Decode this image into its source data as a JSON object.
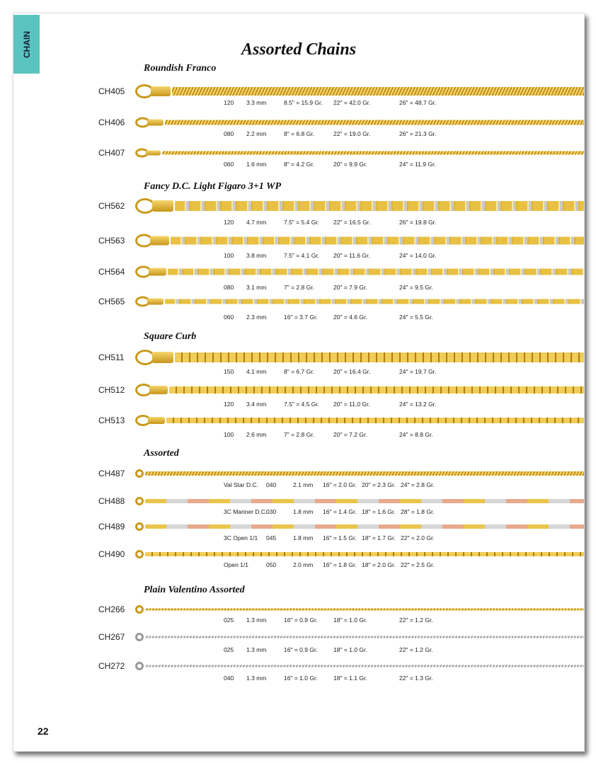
{
  "tab_label": "CHAIN",
  "title": "Assorted Chains",
  "page_number": "22",
  "colors": {
    "tab": "#5cc4c0",
    "gold": "#d4a52a"
  },
  "sections": [
    {
      "heading": "Roundish Franco",
      "items": [
        {
          "code": "CH405",
          "specs": [
            "120",
            "3.3 mm",
            "8.5\" = 15.9 Gr.",
            "22\" = 42.0 Gr.",
            "26\" = 48.7 Gr."
          ]
        },
        {
          "code": "CH406",
          "specs": [
            "080",
            "2.2 mm",
            "8\" = 6.8 Gr.",
            "22\" = 19.0 Gr.",
            "26\" = 21.3 Gr."
          ]
        },
        {
          "code": "CH407",
          "specs": [
            "060",
            "1.6 mm",
            "8\" = 4.2 Gr.",
            "20\" = 9.9 Gr.",
            "24\" = 11.9 Gr."
          ]
        }
      ]
    },
    {
      "heading": "Fancy D.C. Light Figaro 3+1  WP",
      "items": [
        {
          "code": "CH562",
          "specs": [
            "120",
            "4.7 mm",
            "7.5\" = 5.4 Gr.",
            "22\" = 16.5 Gr.",
            "26\" = 19.8 Gr."
          ]
        },
        {
          "code": "CH563",
          "specs": [
            "100",
            "3.8 mm",
            "7.5\" = 4.1 Gr.",
            "20\" = 11.6 Gr.",
            "24\" = 14.0 Gr."
          ]
        },
        {
          "code": "CH564",
          "specs": [
            "080",
            "3.1 mm",
            "7\" = 2.8 Gr.",
            "20\" = 7.9 Gr.",
            "24\" = 9.5 Gr."
          ]
        },
        {
          "code": "CH565",
          "specs": [
            "060",
            "2.3 mm",
            "16\" = 3.7 Gr.",
            "20\" = 4.6 Gr.",
            "24\" = 5.5 Gr."
          ]
        }
      ]
    },
    {
      "heading": "Square Curb",
      "items": [
        {
          "code": "CH511",
          "specs": [
            "150",
            "4.1 mm",
            "8\" = 6.7 Gr.",
            "20\" = 16.4 Gr.",
            "24\" = 19.7 Gr."
          ]
        },
        {
          "code": "CH512",
          "specs": [
            "120",
            "3.4 mm",
            "7.5\" = 4.5 Gr.",
            "20\" = 11.0 Gr.",
            "24\" = 13.2 Gr."
          ]
        },
        {
          "code": "CH513",
          "specs": [
            "100",
            "2.6 mm",
            "7\" = 2.8 Gr.",
            "20\" = 7.2 Gr.",
            "24\" = 8.8 Gr."
          ]
        }
      ]
    },
    {
      "heading": "Assorted",
      "items": [
        {
          "code": "CH487",
          "specs": [
            "Val Star D.C.",
            "040",
            "2.1 mm",
            "16\" = 2.0 Gr.",
            "20\" = 2.3 Gr.",
            "24\" = 2.8 Gr."
          ]
        },
        {
          "code": "CH488",
          "specs": [
            "3C Mariner D.C.",
            "030",
            "1.8 mm",
            "16\" = 1.4 Gr.",
            "18\" = 1.6 Gr.",
            "28\" = 1.8 Gr."
          ]
        },
        {
          "code": "CH489",
          "specs": [
            "3C Open 1/1",
            "045",
            "1.8 mm",
            "16\" = 1.5 Gr.",
            "18\" = 1.7 Gr.",
            "22\" = 2.0 Gr."
          ]
        },
        {
          "code": "CH490",
          "specs": [
            "Open 1/1",
            "050",
            "2.0 mm",
            "16\" = 1.8 Gr.",
            "18\" = 2.0 Gr.",
            "22\" = 2.5 Gr."
          ]
        }
      ]
    },
    {
      "heading": "Plain Valentino Assorted",
      "items": [
        {
          "code": "CH266",
          "specs": [
            "025",
            "1.3 mm",
            "16\" = 0.9 Gr.",
            "18\" = 1.0 Gr.",
            "22\" = 1.2 Gr."
          ]
        },
        {
          "code": "CH267",
          "specs": [
            "025",
            "1.3 mm",
            "16\" = 0.9 Gr.",
            "18\" = 1.0 Gr.",
            "22\" = 1.2 Gr."
          ]
        },
        {
          "code": "CH272",
          "specs": [
            "040",
            "1.3 mm",
            "16\" = 1.0 Gr.",
            "18\" = 1.1 Gr.",
            "22\" = 1.3 Gr."
          ]
        }
      ]
    }
  ]
}
